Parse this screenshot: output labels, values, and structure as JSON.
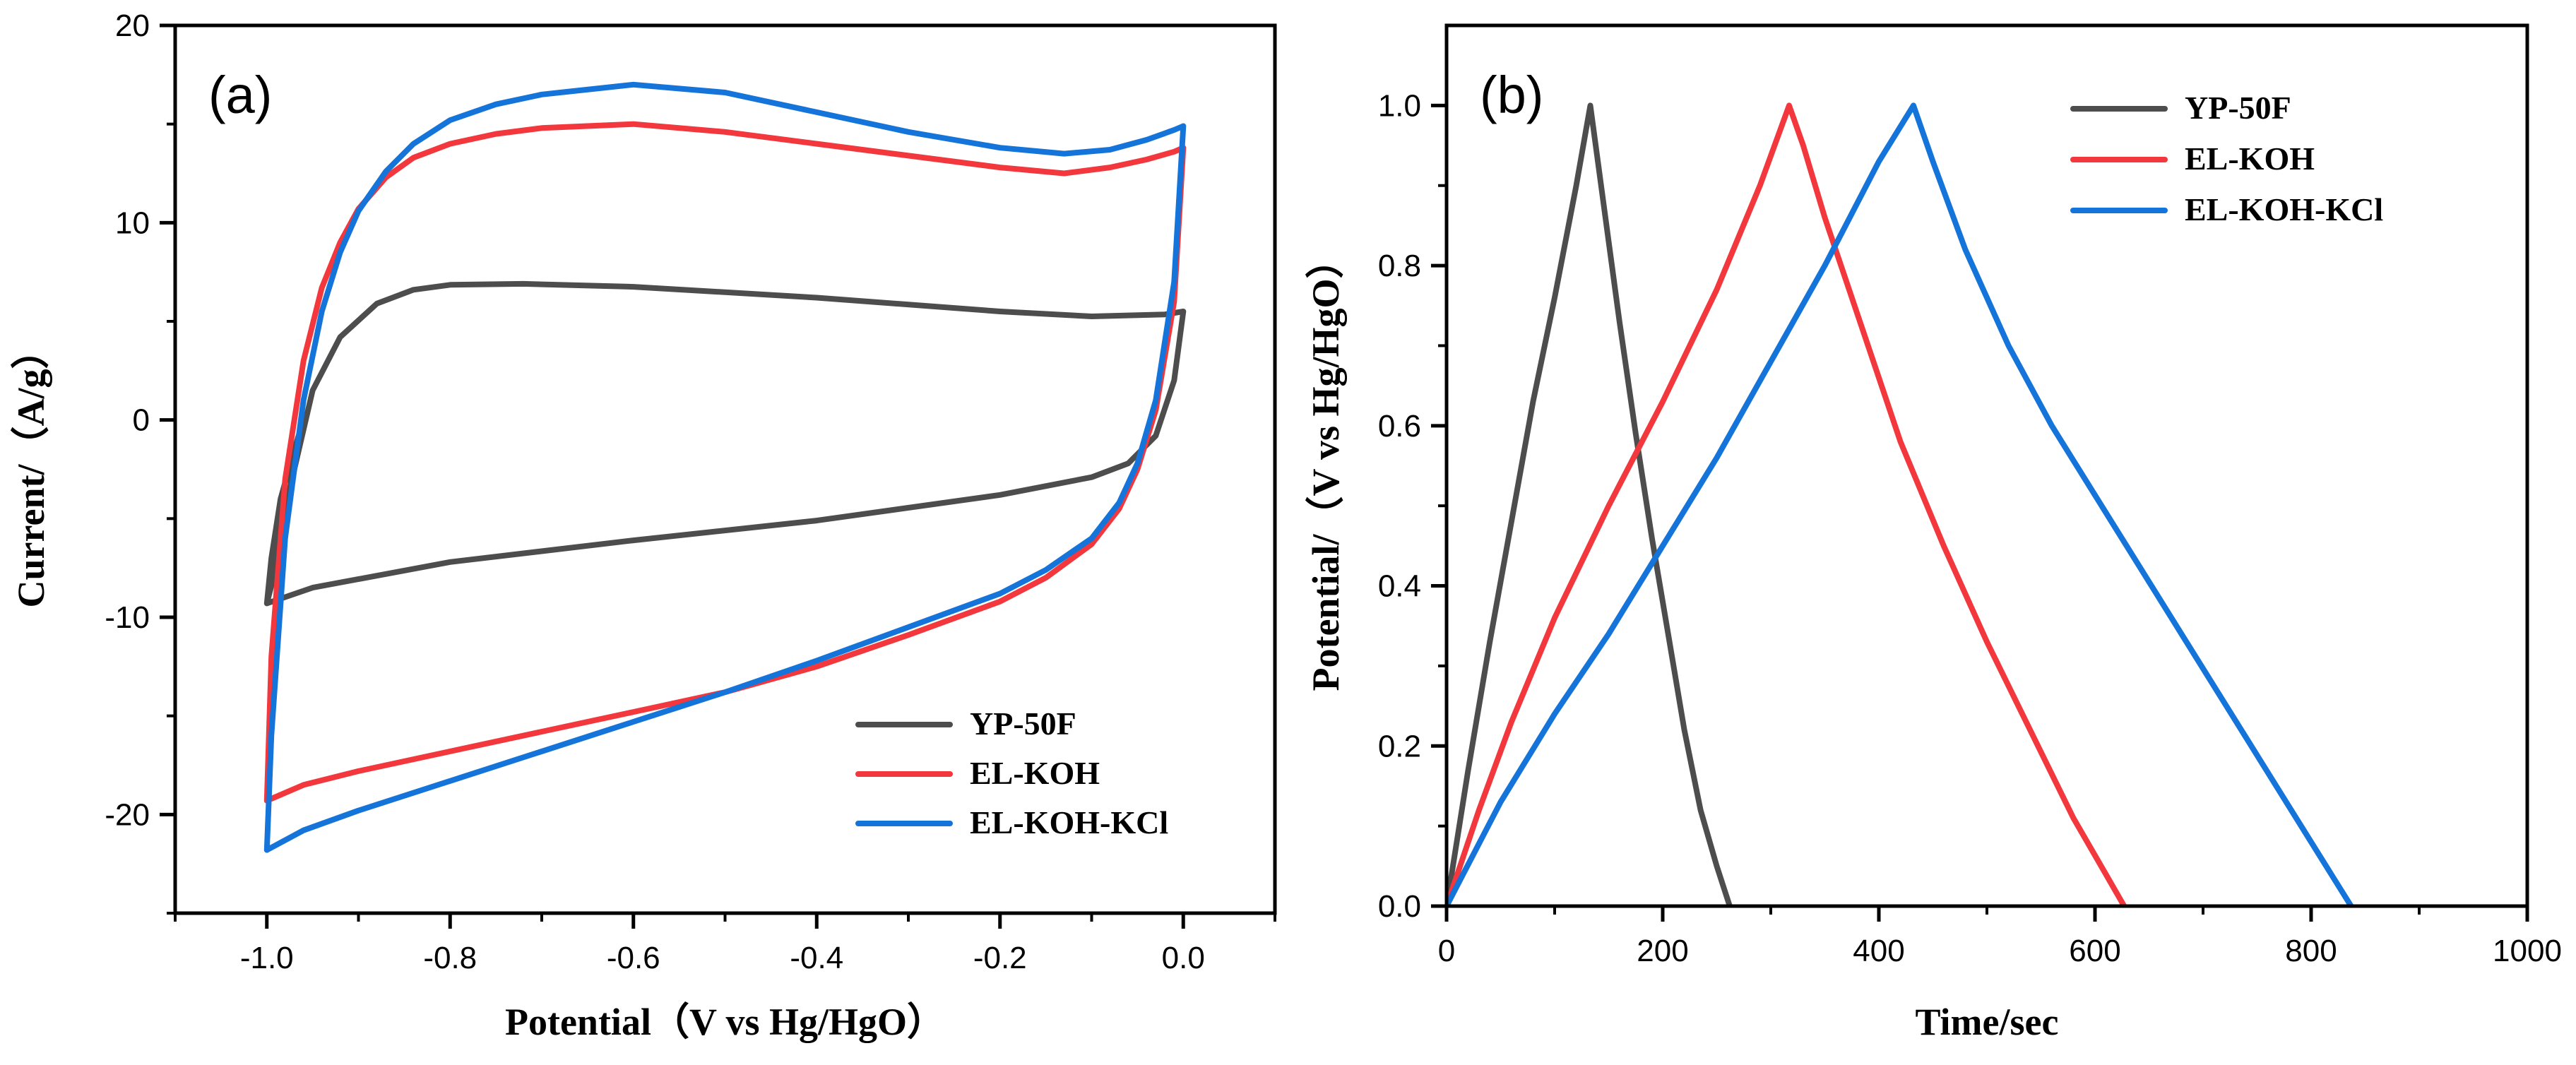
{
  "colors": {
    "YP-50F": "#4d4d4d",
    "EL-KOH": "#f2373d",
    "EL-KOH-KCl": "#1474d9",
    "axis": "#000000"
  },
  "chart_data": [
    {
      "id": "a",
      "panel_label": "(a)",
      "type": "line",
      "title": "",
      "xlabel": "Potential（V vs Hg/HgO）",
      "ylabel": "Current/（A/g）",
      "xlim": [
        -1.1,
        0.1
      ],
      "ylim": [
        -25,
        20
      ],
      "xticks": [
        -1.0,
        -0.8,
        -0.6,
        -0.4,
        -0.2,
        0.0
      ],
      "xtick_labels": [
        "-1.0",
        "-0.8",
        "-0.6",
        "-0.4",
        "-0.2",
        "0.0"
      ],
      "xminor": [
        -1.1,
        -0.9,
        -0.7,
        -0.5,
        -0.3,
        -0.1,
        0.1
      ],
      "yticks": [
        -20,
        -10,
        0,
        10,
        20
      ],
      "ytick_labels": [
        "-20",
        "-10",
        "0",
        "10",
        "20"
      ],
      "yminor": [
        -25,
        -15,
        -5,
        5,
        15
      ],
      "legend_position": "bottom-right",
      "series": [
        {
          "name": "YP-50F",
          "x": [
            -1.0,
            -0.99,
            -0.97,
            -0.95,
            -0.92,
            -0.88,
            -0.84,
            -0.8,
            -0.72,
            -0.6,
            -0.4,
            -0.2,
            -0.1,
            -0.02,
            0.0,
            -0.01,
            -0.03,
            -0.06,
            -0.1,
            -0.2,
            -0.4,
            -0.6,
            -0.8,
            -0.95,
            -1.0,
            -0.995,
            -0.985,
            -0.97,
            -0.96,
            -1.0
          ],
          "y": [
            -9.3,
            -7.5,
            -2.5,
            1.5,
            4.2,
            5.9,
            6.6,
            6.85,
            6.9,
            6.75,
            6.2,
            5.5,
            5.25,
            5.35,
            5.5,
            2.0,
            -0.8,
            -2.2,
            -2.9,
            -3.8,
            -5.1,
            -6.1,
            -7.2,
            -8.5,
            -9.3,
            -7.0,
            -4.0,
            -1.5,
            0.0,
            -9.3
          ]
        },
        {
          "name": "EL-KOH",
          "x": [
            -1.0,
            -0.995,
            -0.98,
            -0.96,
            -0.94,
            -0.92,
            -0.9,
            -0.87,
            -0.84,
            -0.8,
            -0.75,
            -0.7,
            -0.6,
            -0.5,
            -0.4,
            -0.3,
            -0.2,
            -0.13,
            -0.08,
            -0.04,
            -0.01,
            0.0,
            -0.01,
            -0.03,
            -0.05,
            -0.07,
            -0.1,
            -0.15,
            -0.2,
            -0.3,
            -0.4,
            -0.5,
            -0.6,
            -0.7,
            -0.8,
            -0.9,
            -0.96,
            -1.0
          ],
          "y": [
            -19.3,
            -12.0,
            -3.0,
            3.0,
            6.7,
            9.0,
            10.7,
            12.3,
            13.3,
            14.0,
            14.5,
            14.8,
            15.0,
            14.6,
            14.0,
            13.4,
            12.8,
            12.5,
            12.8,
            13.2,
            13.6,
            13.8,
            6.0,
            0.5,
            -2.5,
            -4.5,
            -6.3,
            -8.0,
            -9.2,
            -10.9,
            -12.5,
            -13.8,
            -14.8,
            -15.8,
            -16.8,
            -17.8,
            -18.5,
            -19.3
          ]
        },
        {
          "name": "EL-KOH-KCl",
          "x": [
            -1.0,
            -0.995,
            -0.98,
            -0.96,
            -0.94,
            -0.92,
            -0.9,
            -0.87,
            -0.84,
            -0.8,
            -0.75,
            -0.7,
            -0.6,
            -0.5,
            -0.4,
            -0.3,
            -0.2,
            -0.13,
            -0.08,
            -0.04,
            -0.01,
            0.0,
            -0.01,
            -0.03,
            -0.05,
            -0.07,
            -0.1,
            -0.15,
            -0.2,
            -0.3,
            -0.4,
            -0.5,
            -0.6,
            -0.7,
            -0.8,
            -0.9,
            -0.96,
            -1.0
          ],
          "y": [
            -21.8,
            -16.0,
            -6.0,
            1.0,
            5.5,
            8.5,
            10.6,
            12.6,
            14.0,
            15.2,
            16.0,
            16.5,
            17.0,
            16.6,
            15.6,
            14.6,
            13.8,
            13.5,
            13.7,
            14.2,
            14.7,
            14.9,
            7.0,
            1.0,
            -2.2,
            -4.2,
            -6.0,
            -7.6,
            -8.8,
            -10.5,
            -12.2,
            -13.8,
            -15.3,
            -16.8,
            -18.3,
            -19.8,
            -20.8,
            -21.8
          ]
        }
      ]
    },
    {
      "id": "b",
      "panel_label": "(b)",
      "type": "line",
      "title": "",
      "xlabel": "Time/sec",
      "ylabel": "Potential/（V vs Hg/HgO）",
      "xlim": [
        0,
        1000
      ],
      "ylim": [
        0,
        1.1
      ],
      "xticks": [
        0,
        200,
        400,
        600,
        800,
        1000
      ],
      "xtick_labels": [
        "0",
        "200",
        "400",
        "600",
        "800",
        "1000"
      ],
      "xminor": [
        100,
        300,
        500,
        700,
        900
      ],
      "yticks": [
        0.0,
        0.2,
        0.4,
        0.6,
        0.8,
        1.0
      ],
      "ytick_labels": [
        "0.0",
        "0.2",
        "0.4",
        "0.6",
        "0.8",
        "1.0"
      ],
      "yminor": [
        0.1,
        0.3,
        0.5,
        0.7,
        0.9
      ],
      "legend_position": "top-right",
      "series": [
        {
          "name": "YP-50F",
          "x": [
            0,
            20,
            40,
            60,
            80,
            100,
            120,
            133,
            140,
            150,
            160,
            175,
            190,
            205,
            220,
            235,
            250,
            262
          ],
          "y": [
            0.0,
            0.17,
            0.33,
            0.48,
            0.63,
            0.76,
            0.9,
            1.0,
            0.93,
            0.83,
            0.73,
            0.59,
            0.46,
            0.34,
            0.22,
            0.12,
            0.05,
            0.0
          ],
          "y_labels_note": ""
        },
        {
          "name": "EL-KOH",
          "x": [
            0,
            30,
            60,
            100,
            150,
            200,
            250,
            290,
            317,
            330,
            350,
            380,
            420,
            460,
            500,
            540,
            580,
            610,
            627
          ],
          "y": [
            0.0,
            0.12,
            0.23,
            0.36,
            0.5,
            0.63,
            0.77,
            0.9,
            1.0,
            0.95,
            0.86,
            0.74,
            0.58,
            0.45,
            0.33,
            0.22,
            0.11,
            0.04,
            0.0
          ]
        },
        {
          "name": "EL-KOH-KCl",
          "x": [
            0,
            50,
            100,
            150,
            200,
            250,
            300,
            350,
            400,
            432,
            450,
            480,
            520,
            560,
            620,
            680,
            740,
            800,
            837
          ],
          "y": [
            0.0,
            0.13,
            0.24,
            0.34,
            0.45,
            0.56,
            0.68,
            0.8,
            0.93,
            1.0,
            0.93,
            0.82,
            0.7,
            0.6,
            0.47,
            0.34,
            0.21,
            0.08,
            0.0
          ]
        }
      ]
    }
  ]
}
